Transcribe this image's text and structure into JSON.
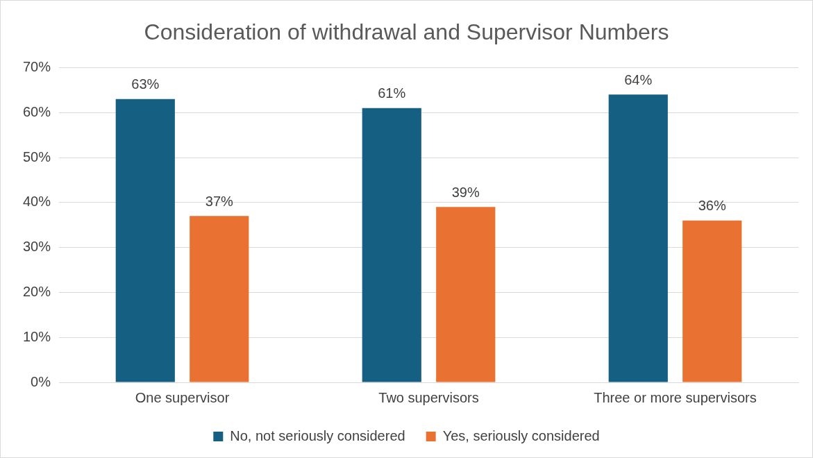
{
  "chart_data": {
    "type": "bar",
    "title": "Consideration of withdrawal and Supervisor Numbers",
    "categories": [
      "One supervisor",
      "Two supervisors",
      "Three or more supervisors"
    ],
    "series": [
      {
        "name": "No, not seriously considered",
        "color": "#156082",
        "values": [
          63,
          61,
          64
        ],
        "value_labels": [
          "63%",
          "61%",
          "64%"
        ]
      },
      {
        "name": "Yes, seriously considered",
        "color": "#e97132",
        "values": [
          37,
          39,
          36
        ],
        "value_labels": [
          "37%",
          "39%",
          "36%"
        ]
      }
    ],
    "ylim": [
      0,
      70
    ],
    "yticks": [
      {
        "value": 0,
        "label": "0%"
      },
      {
        "value": 10,
        "label": "10%"
      },
      {
        "value": 20,
        "label": "20%"
      },
      {
        "value": 30,
        "label": "30%"
      },
      {
        "value": 40,
        "label": "40%"
      },
      {
        "value": 50,
        "label": "50%"
      },
      {
        "value": 60,
        "label": "60%"
      },
      {
        "value": 70,
        "label": "70%"
      }
    ],
    "grid": "y",
    "legend": "bottom"
  }
}
